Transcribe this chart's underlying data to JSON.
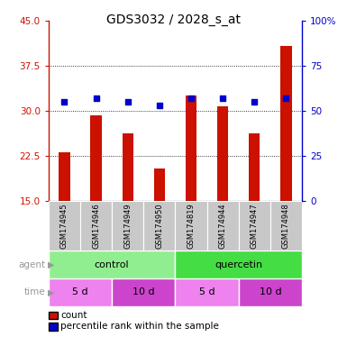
{
  "title": "GDS3032 / 2028_s_at",
  "samples": [
    "GSM174945",
    "GSM174946",
    "GSM174949",
    "GSM174950",
    "GSM174819",
    "GSM174944",
    "GSM174947",
    "GSM174948"
  ],
  "count_values": [
    23.0,
    29.3,
    26.2,
    20.3,
    32.5,
    30.8,
    26.2,
    40.8
  ],
  "percentile_values": [
    55,
    57,
    55,
    53,
    57,
    57,
    55,
    57
  ],
  "agent_colors": [
    "#90ee90",
    "#44dd44"
  ],
  "time_colors_light": "#ee82ee",
  "time_colors_dark": "#cc44cc",
  "ylim_left": [
    15,
    45
  ],
  "ylim_right": [
    0,
    100
  ],
  "yticks_left": [
    15,
    22.5,
    30,
    37.5,
    45
  ],
  "yticks_right": [
    0,
    25,
    50,
    75,
    100
  ],
  "bar_color": "#cc1100",
  "dot_color": "#0000cc",
  "bg_color": "#ffffff",
  "tick_label_color_left": "#cc1100",
  "tick_label_color_right": "#0000cc",
  "sample_bg_color": "#c8c8c8",
  "figsize": [
    3.85,
    3.84
  ],
  "dpi": 100
}
